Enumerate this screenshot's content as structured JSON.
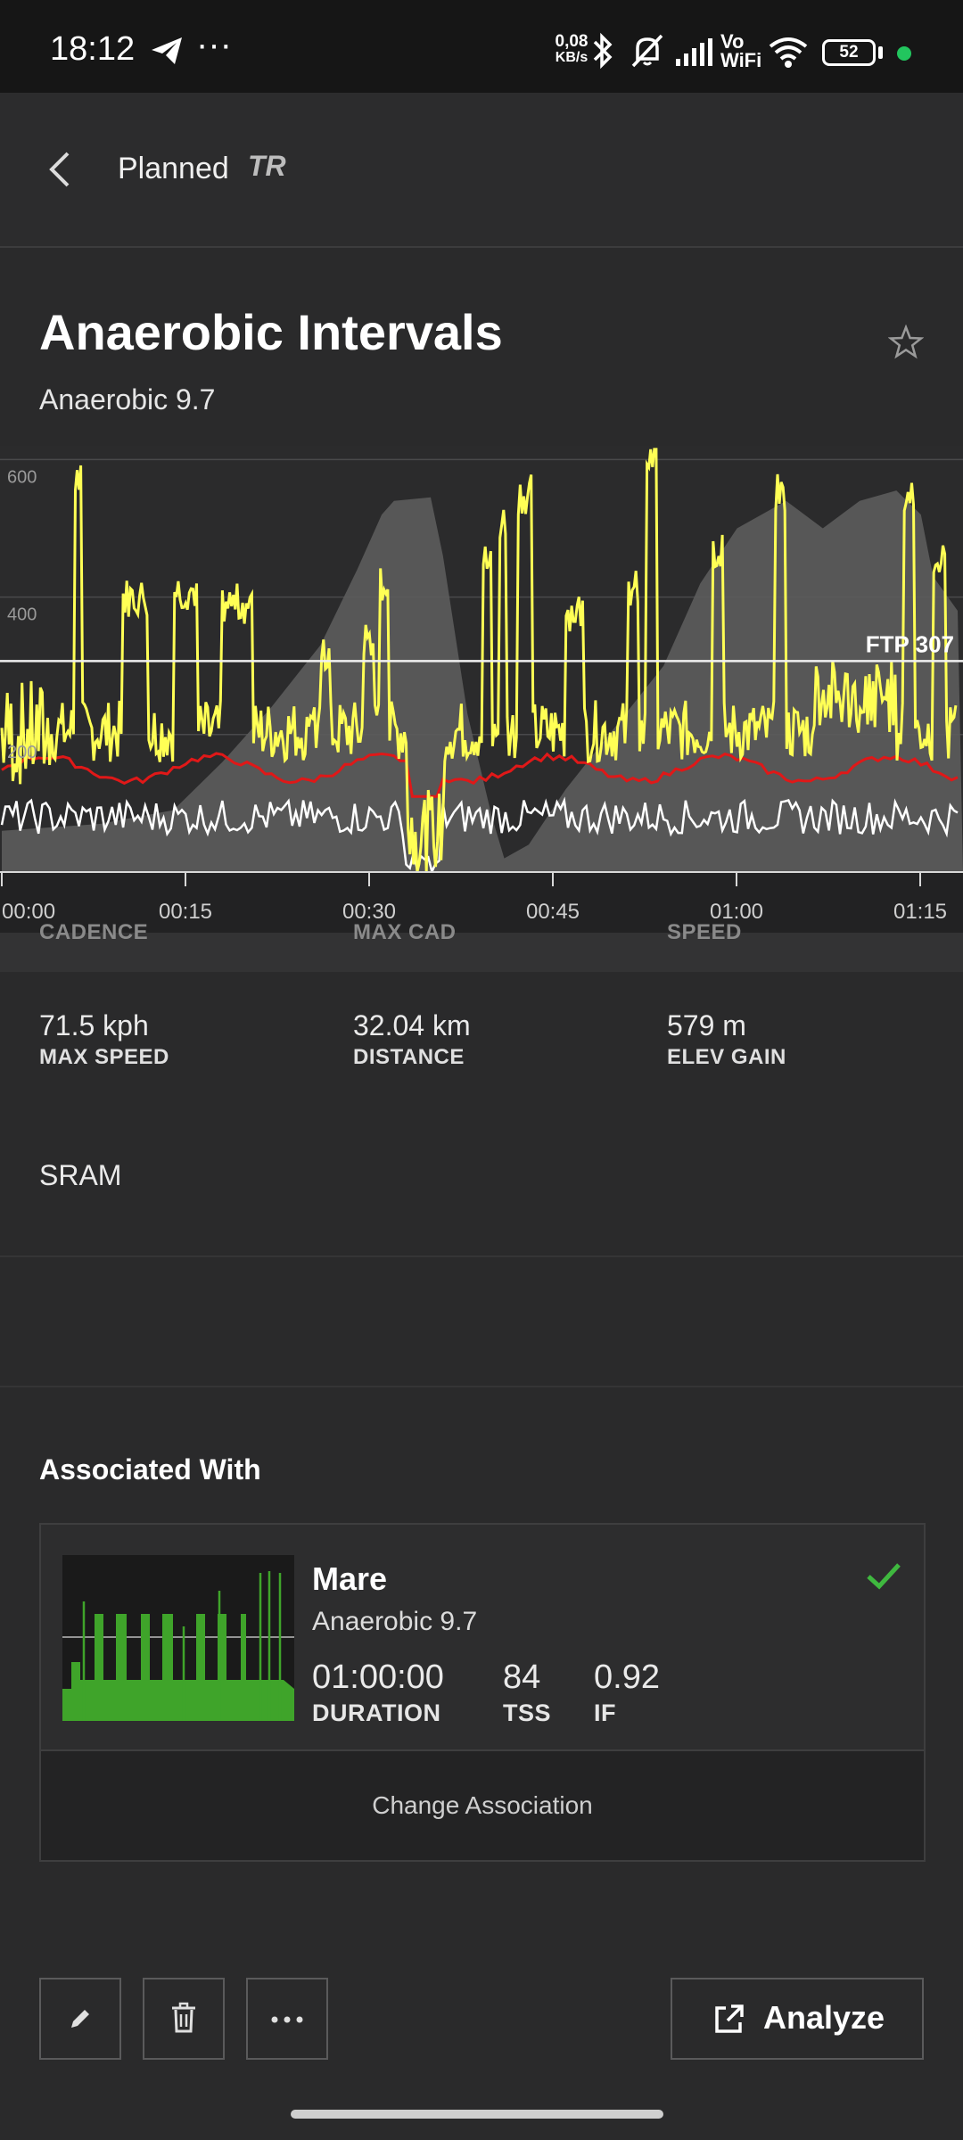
{
  "status_bar": {
    "time": "18:12",
    "net_speed_value": "0,08",
    "net_speed_unit": "KB/s",
    "volte_top": "Vo",
    "volte_bottom": "WiFi",
    "battery": "52"
  },
  "header": {
    "title": "Planned",
    "badge": "TR"
  },
  "workout": {
    "title": "Anaerobic Intervals",
    "subtitle": "Anaerobic 9.7"
  },
  "chart_data": {
    "type": "line",
    "y_ticks": [
      "600",
      "400",
      "200"
    ],
    "ylim": [
      0,
      620
    ],
    "x_ticks": [
      "00:00",
      "00:15",
      "00:30",
      "00:45",
      "01:00",
      "01:15"
    ],
    "xlim_minutes": [
      0,
      78
    ],
    "ftp_label": "FTP 307",
    "ftp_value": 307,
    "colors": {
      "power": "#ffff55",
      "heart_rate": "#e01818",
      "cadence": "#ffffff",
      "elevation": "#5c5c5c"
    }
  },
  "stats": {
    "cut_off_labels": [
      "CADENCE",
      "MAX CAD",
      "SPEED"
    ],
    "items": [
      {
        "value": "71.5 kph",
        "label": "MAX SPEED"
      },
      {
        "value": "32.04 km",
        "label": "DISTANCE"
      },
      {
        "value": "579 m",
        "label": "ELEV GAIN"
      }
    ],
    "equipment": "SRAM"
  },
  "association": {
    "title": "Associated With",
    "name": "Mare",
    "subtitle": "Anaerobic 9.7",
    "metrics": [
      {
        "value": "01:00:00",
        "label": "DURATION"
      },
      {
        "value": "84",
        "label": "TSS"
      },
      {
        "value": "0.92",
        "label": "IF"
      }
    ],
    "change_label": "Change Association"
  },
  "actions": {
    "analyze_label": "Analyze"
  }
}
